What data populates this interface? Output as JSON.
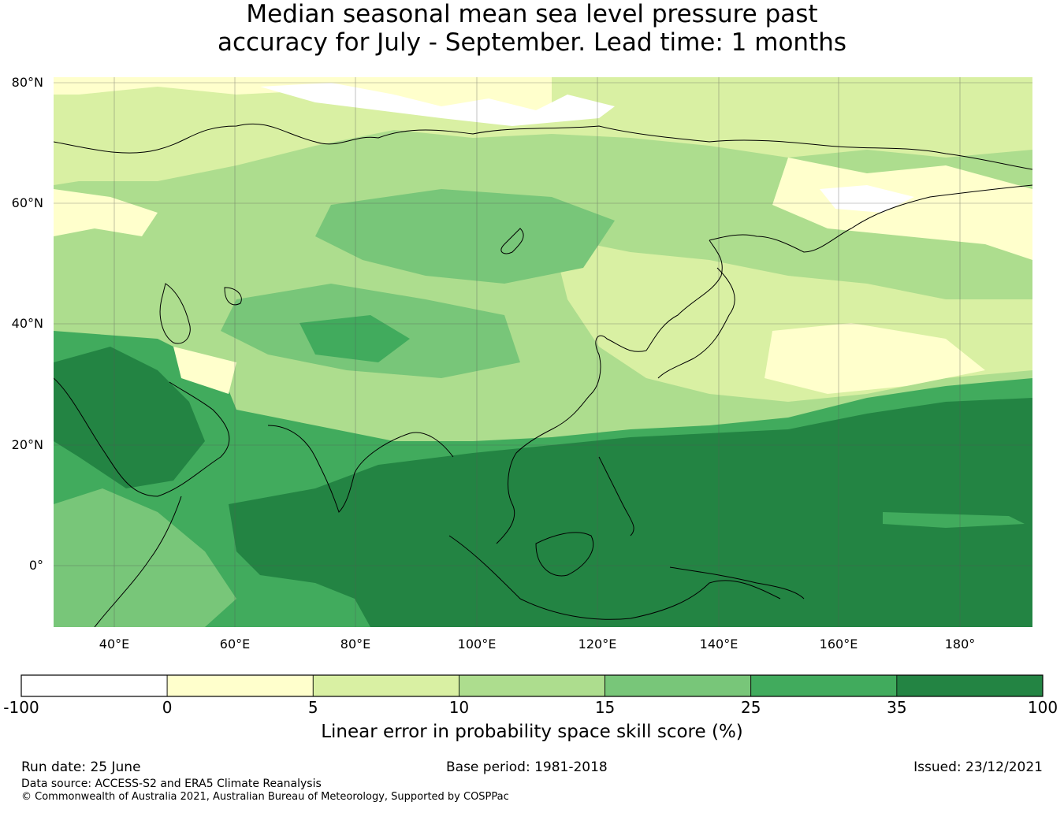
{
  "title": {
    "line1": "Median seasonal mean sea level pressure past",
    "line2": "accuracy for July - September. Lead time: 1 months"
  },
  "map": {
    "lat_labels": [
      "80°N",
      "60°N",
      "40°N",
      "20°N",
      "0°"
    ],
    "lon_labels": [
      "40°E",
      "60°E",
      "80°E",
      "100°E",
      "120°E",
      "140°E",
      "160°E",
      "180°"
    ],
    "lon_range": [
      30,
      192
    ],
    "lat_range": [
      -10,
      81
    ]
  },
  "colorbar": {
    "ticks": [
      "-100",
      "0",
      "5",
      "10",
      "15",
      "25",
      "35",
      "100"
    ],
    "colors": [
      "#ffffff",
      "#ffffcc",
      "#d9f0a3",
      "#addd8e",
      "#78c679",
      "#41ab5d",
      "#238443"
    ],
    "label": "Linear error in probability space skill score (%)"
  },
  "footer": {
    "run_date": "Run date: 25 June",
    "base_period": "Base period: 1981-2018",
    "issued": "Issued: 23/12/2021",
    "data_source": "Data source: ACCESS-S2 and ERA5 Climate Reanalysis",
    "copyright": "© Commonwealth of Australia 2021, Australian Bureau of Meteorology, Supported by COSPPac"
  }
}
